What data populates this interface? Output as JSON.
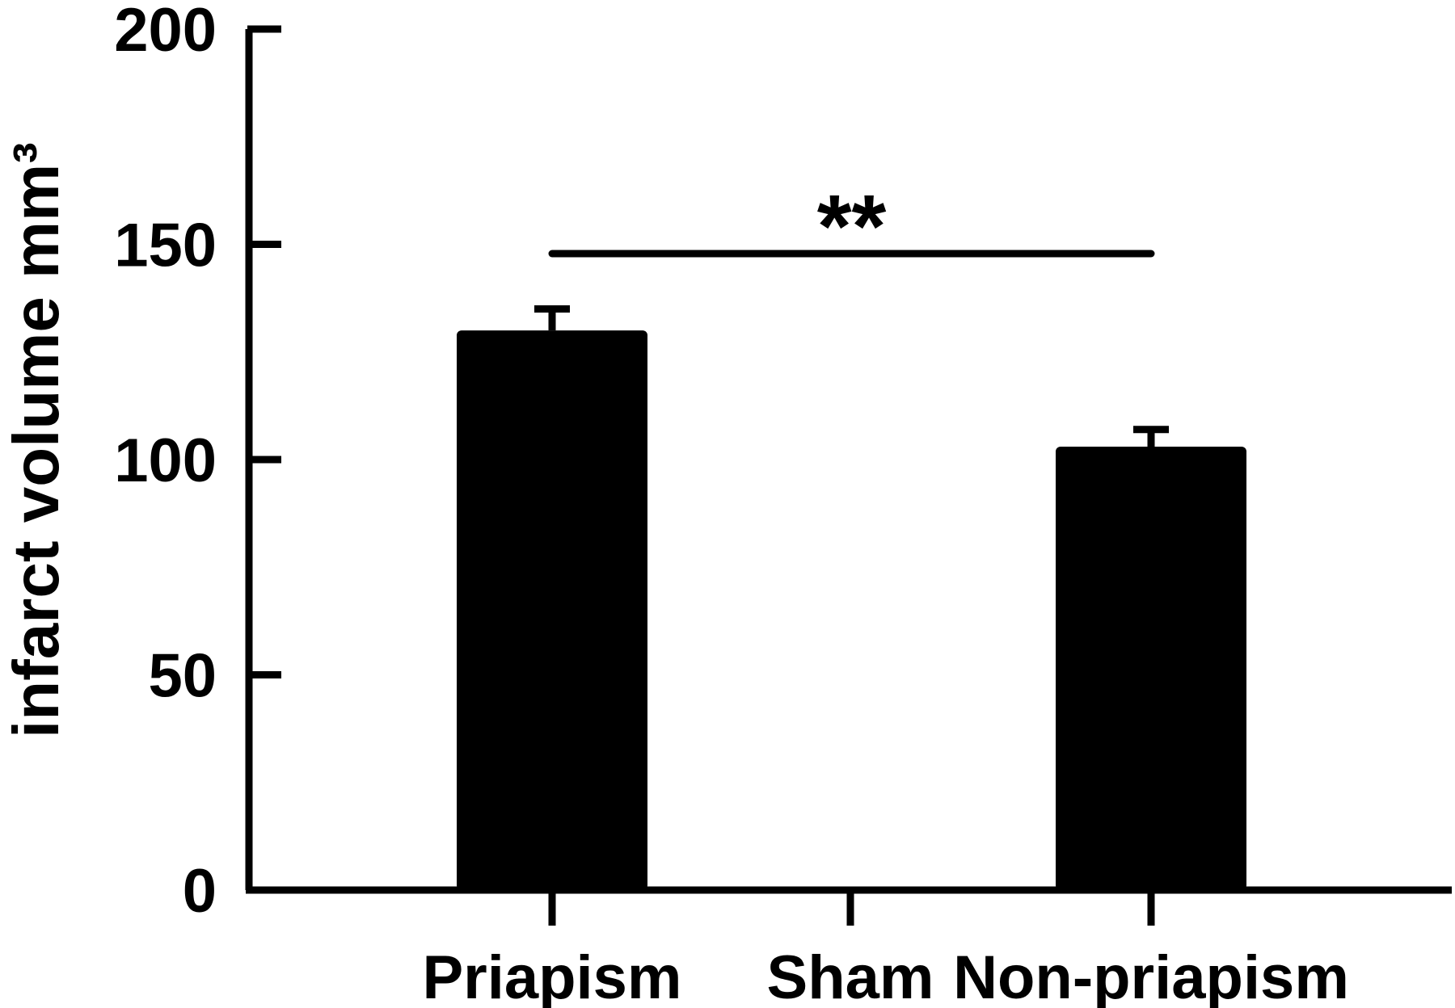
{
  "chart_data": {
    "type": "bar",
    "categories": [
      "Priapism",
      "Sham",
      "Non-priapism"
    ],
    "values": [
      130,
      0,
      103
    ],
    "error": [
      5,
      0,
      4
    ],
    "ylabel": "infarct volume mm³",
    "xlabel": "",
    "ylim": [
      0,
      200
    ],
    "yticks": [
      0,
      50,
      100,
      150,
      200
    ],
    "grid": false,
    "legend": "none",
    "bar_color": "#000000",
    "significance": {
      "from": "Priapism",
      "to": "Non-priapism",
      "label": "**"
    }
  }
}
